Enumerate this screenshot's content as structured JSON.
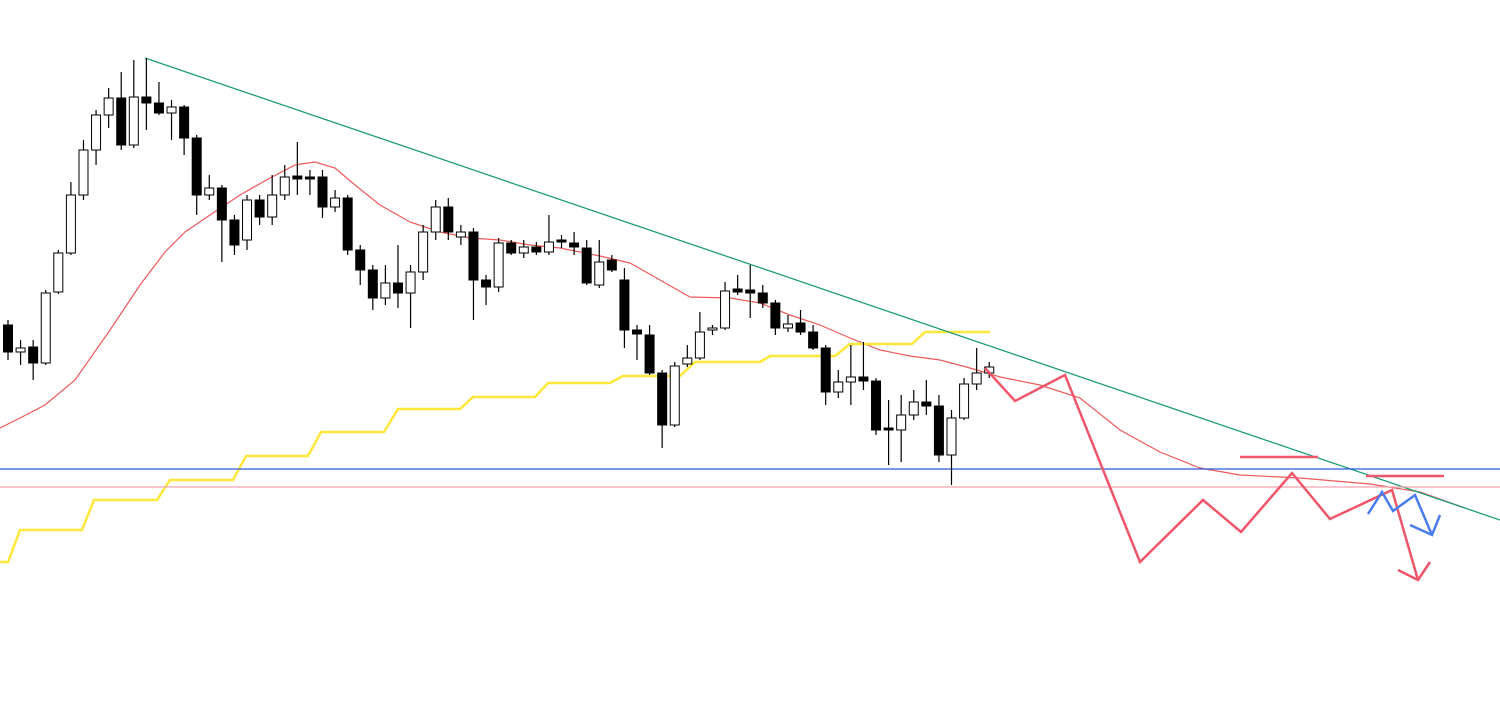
{
  "chart_data": {
    "type": "candlestick",
    "open": [
      387,
      360,
      365,
      349,
      420,
      459,
      517,
      562,
      597,
      614,
      567,
      615,
      609,
      599,
      605,
      574,
      517,
      524,
      492,
      472,
      512,
      495,
      517,
      536,
      535,
      535,
      505,
      514,
      462,
      442,
      414,
      429,
      419,
      440,
      480,
      505,
      475,
      480,
      432,
      425,
      469,
      459,
      465,
      460,
      472,
      469,
      464,
      427,
      452,
      432,
      382,
      377,
      339,
      287,
      348,
      354,
      382,
      384,
      423,
      422,
      419,
      409,
      384,
      389,
      380,
      364,
      320,
      330,
      335,
      331,
      284,
      282,
      297,
      310,
      306,
      257,
      294,
      328,
      339
    ],
    "high": [
      392,
      372,
      372,
      422,
      462,
      530,
      572,
      602,
      624,
      640,
      652,
      654,
      630,
      612,
      607,
      577,
      537,
      527,
      497,
      517,
      517,
      537,
      547,
      570,
      542,
      542,
      522,
      517,
      467,
      447,
      447,
      467,
      447,
      487,
      512,
      514,
      487,
      484,
      437,
      474,
      472,
      472,
      470,
      497,
      477,
      480,
      472,
      472,
      457,
      444,
      387,
      387,
      342,
      350,
      367,
      400,
      387,
      430,
      437,
      447,
      427,
      412,
      397,
      402,
      387,
      367,
      342,
      367,
      370,
      334,
      312,
      317,
      322,
      332,
      317,
      302,
      334,
      364,
      350
    ],
    "low": [
      352,
      347,
      332,
      347,
      418,
      457,
      512,
      547,
      584,
      562,
      564,
      582,
      597,
      572,
      557,
      497,
      512,
      450,
      457,
      462,
      487,
      487,
      512,
      517,
      517,
      494,
      500,
      457,
      427,
      402,
      407,
      404,
      384,
      432,
      472,
      472,
      467,
      392,
      407,
      420,
      457,
      454,
      457,
      457,
      464,
      457,
      427,
      424,
      440,
      364,
      352,
      337,
      264,
      285,
      345,
      352,
      377,
      382,
      417,
      394,
      404,
      377,
      380,
      377,
      362,
      307,
      314,
      307,
      322,
      277,
      247,
      250,
      292,
      297,
      250,
      227,
      292,
      322,
      334
    ],
    "close": [
      360,
      364,
      349,
      419,
      459,
      517,
      562,
      597,
      614,
      567,
      615,
      609,
      599,
      605,
      574,
      517,
      524,
      492,
      467,
      512,
      495,
      517,
      535,
      533,
      533,
      505,
      514,
      462,
      442,
      414,
      429,
      419,
      440,
      480,
      505,
      480,
      480,
      432,
      425,
      469,
      459,
      465,
      460,
      470,
      470,
      465,
      429,
      450,
      442,
      382,
      378,
      339,
      287,
      346,
      354,
      380,
      384,
      421,
      420,
      419,
      409,
      384,
      388,
      380,
      364,
      320,
      330,
      335,
      331,
      282,
      282,
      297,
      310,
      306,
      257,
      294,
      328,
      339,
      345
    ],
    "up_color": "#ffffff",
    "down_color": "#000000",
    "ylim": [
      0,
      712
    ],
    "hlines": [
      {
        "value": 243,
        "color": "#2a5bd7"
      },
      {
        "value": 225,
        "color": "#f4a3b0"
      }
    ]
  }
}
